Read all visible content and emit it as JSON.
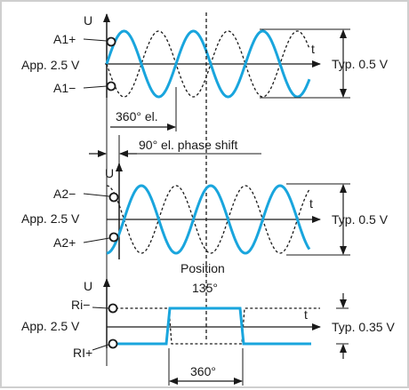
{
  "colors": {
    "signal": "#19a5dd",
    "ink": "#1a1a1a",
    "frame": "#cfcfcf"
  },
  "panel1": {
    "axis_u": "U",
    "axis_t": "t",
    "label_pos": "A1+",
    "label_ref": "App. 2.5 V",
    "label_neg": "A1−",
    "amplitude": "Typ. 0.5 V",
    "period": "360° el."
  },
  "phase_shift": "90°  el. phase shift",
  "panel2": {
    "axis_u": "U",
    "axis_t": "t",
    "label_neg": "A2−",
    "label_ref": "App. 2.5 V",
    "label_pos": "A2+",
    "amplitude": "Typ. 0.5 V"
  },
  "panel3": {
    "position_label": "Position",
    "position_angle": "135°",
    "axis_u": "U",
    "axis_t": "t",
    "label_neg": "Ri−",
    "label_ref": "App. 2.5 V",
    "label_pos": "RI+",
    "amplitude": "Typ. 0.35 V",
    "period": "360°"
  }
}
